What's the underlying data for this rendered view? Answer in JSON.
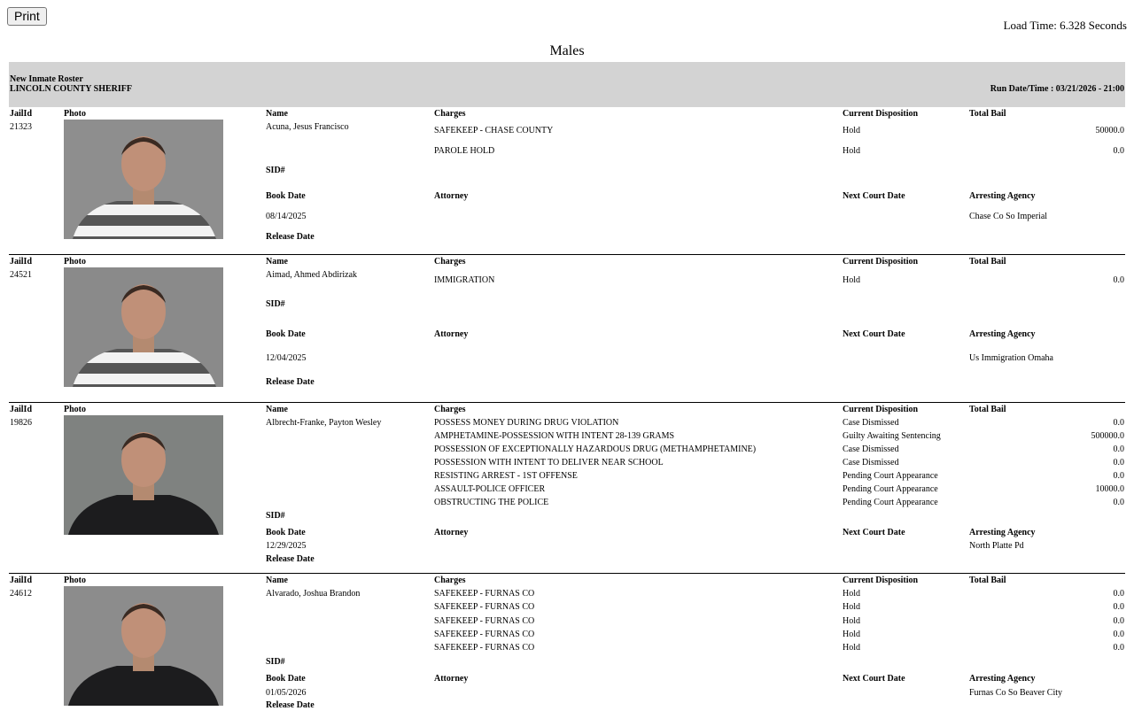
{
  "toolbar": {
    "print_label": "Print",
    "load_time": "Load Time: 6.328 Seconds"
  },
  "page_title": "Males",
  "report": {
    "name": "New Inmate Roster",
    "agency": "LINCOLN COUNTY SHERIFF",
    "run_datetime": "Run Date/Time : 03/21/2026 - 21:00"
  },
  "labels": {
    "jail_id": "JailId",
    "photo": "Photo",
    "name": "Name",
    "charges": "Charges",
    "disposition": "Current Disposition",
    "bail": "Total Bail",
    "sid": "SID#",
    "book_date": "Book Date",
    "attorney": "Attorney",
    "next_court": "Next Court Date",
    "arresting_agency": "Arresting Agency",
    "release_date": "Release Date"
  },
  "inmates": [
    {
      "jail_id": "21323",
      "name": "Acuna, Jesus Francisco",
      "book_date": "08/14/2025",
      "arresting_agency": "Chase Co So Imperial",
      "shirt": "striped",
      "bg": "#8e8e8e",
      "charges": [
        {
          "charge": "SAFEKEEP - CHASE COUNTY",
          "disposition": "Hold",
          "bail": "50000.0"
        },
        {
          "charge": "PAROLE HOLD",
          "disposition": "Hold",
          "bail": "0.0"
        }
      ]
    },
    {
      "jail_id": "24521",
      "name": "Aimad, Ahmed Abdirizak",
      "book_date": "12/04/2025",
      "arresting_agency": "Us Immigration Omaha",
      "shirt": "striped",
      "bg": "#8a8a8a",
      "charges": [
        {
          "charge": "IMMIGRATION",
          "disposition": "Hold",
          "bail": "0.0"
        }
      ]
    },
    {
      "jail_id": "19826",
      "name": "Albrecht-Franke, Payton Wesley",
      "book_date": "12/29/2025",
      "arresting_agency": "North Platte Pd",
      "shirt": "black",
      "bg": "#7f8280",
      "charges": [
        {
          "charge": "POSSESS MONEY DURING DRUG VIOLATION",
          "disposition": "Case Dismissed",
          "bail": "0.0"
        },
        {
          "charge": "AMPHETAMINE-POSSESSION WITH INTENT 28-139 GRAMS",
          "disposition": "Guilty Awaiting Sentencing",
          "bail": "500000.0"
        },
        {
          "charge": "POSSESSION OF EXCEPTIONALLY HAZARDOUS DRUG (METHAMPHETAMINE)",
          "disposition": "Case Dismissed",
          "bail": "0.0"
        },
        {
          "charge": "POSSESSION WITH INTENT TO DELIVER NEAR SCHOOL",
          "disposition": "Case Dismissed",
          "bail": "0.0"
        },
        {
          "charge": "RESISTING ARREST - 1ST OFFENSE",
          "disposition": "Pending Court Appearance",
          "bail": "0.0"
        },
        {
          "charge": "ASSAULT-POLICE OFFICER",
          "disposition": "Pending Court Appearance",
          "bail": "10000.0"
        },
        {
          "charge": "OBSTRUCTING THE POLICE",
          "disposition": "Pending Court Appearance",
          "bail": "0.0"
        }
      ]
    },
    {
      "jail_id": "24612",
      "name": "Alvarado, Joshua Brandon",
      "book_date": "01/05/2026",
      "arresting_agency": "Furnas Co So Beaver City",
      "shirt": "black",
      "bg": "#8c8c8c",
      "charges": [
        {
          "charge": "SAFEKEEP - FURNAS CO",
          "disposition": "Hold",
          "bail": "0.0"
        },
        {
          "charge": "SAFEKEEP - FURNAS CO",
          "disposition": "Hold",
          "bail": "0.0"
        },
        {
          "charge": "SAFEKEEP - FURNAS CO",
          "disposition": "Hold",
          "bail": "0.0"
        },
        {
          "charge": "SAFEKEEP - FURNAS CO",
          "disposition": "Hold",
          "bail": "0.0"
        },
        {
          "charge": "SAFEKEEP - FURNAS CO",
          "disposition": "Hold",
          "bail": "0.0"
        }
      ]
    }
  ]
}
